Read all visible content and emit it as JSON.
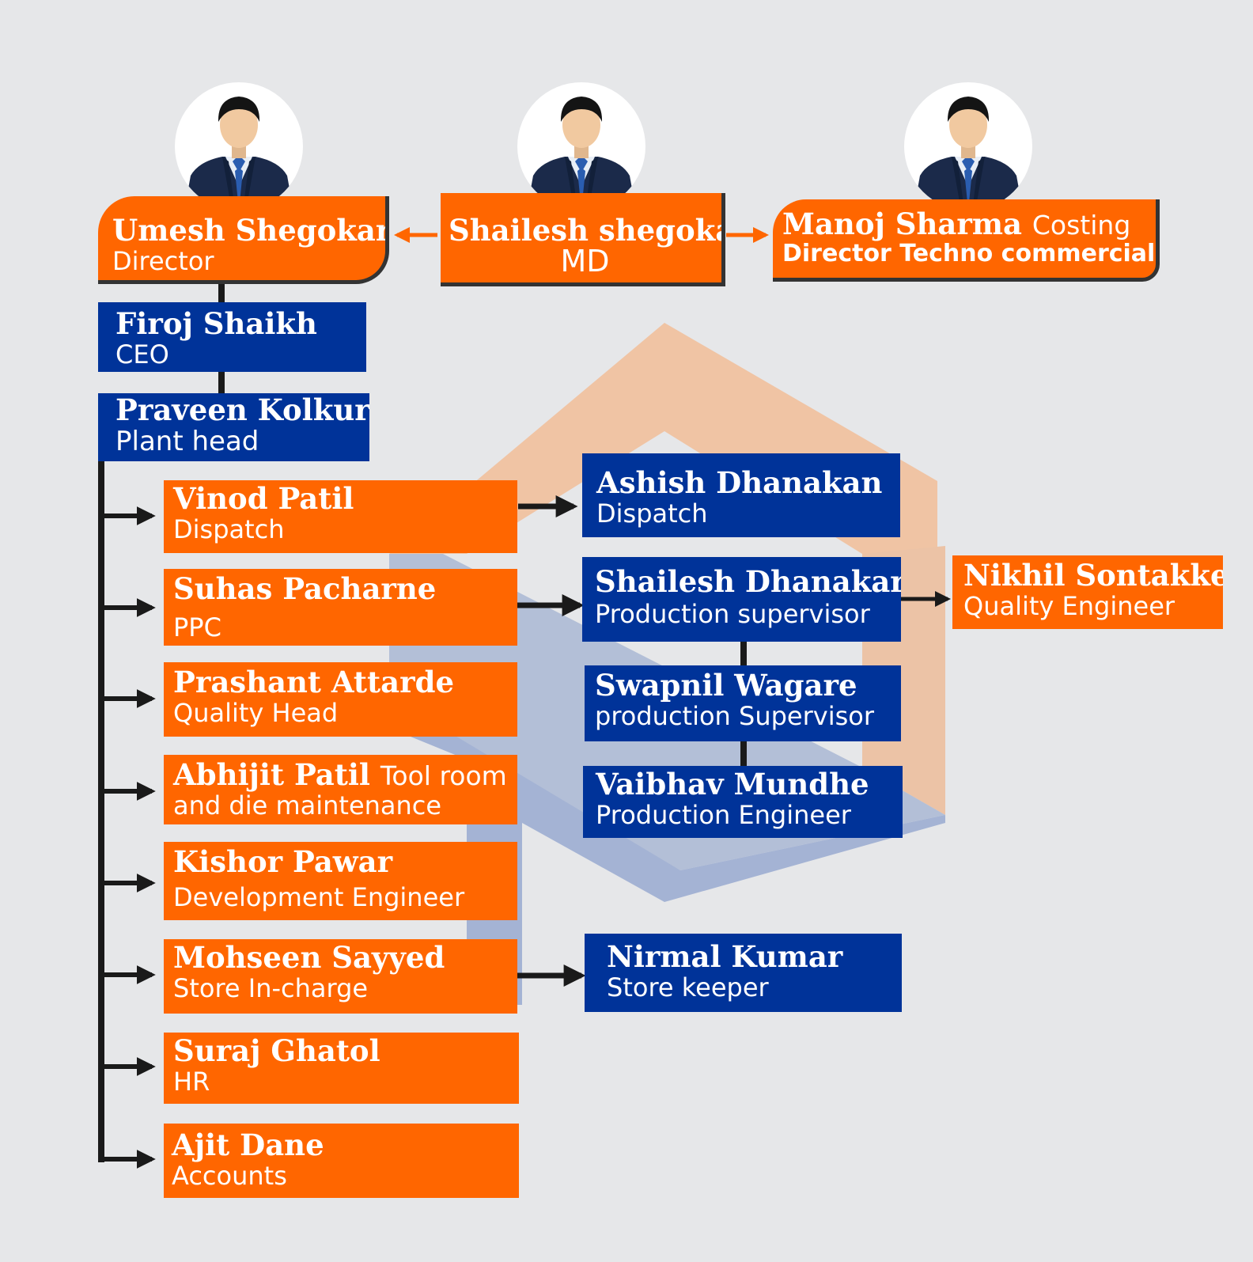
{
  "colors": {
    "orange": "#ff6600",
    "blue": "#003399",
    "background": "#e6e7e9",
    "connector": "#1a1a1a"
  },
  "top": {
    "left": {
      "name": "Umesh Shegokar",
      "role": "Director"
    },
    "center": {
      "name": "Shailesh shegokar",
      "role": "MD"
    },
    "right": {
      "name": "Manoj Sharma",
      "role_inline": "Costing",
      "role": "Director Techno commercial"
    }
  },
  "chain": [
    {
      "name": "Firoj Shaikh",
      "role": "CEO"
    },
    {
      "name": "Praveen Kolkur",
      "role": "Plant head"
    }
  ],
  "departments": [
    {
      "name": "Vinod Patil",
      "role": "Dispatch"
    },
    {
      "name": "Suhas Pacharne",
      "role": "PPC"
    },
    {
      "name": "Prashant Attarde",
      "role": "Quality Head"
    },
    {
      "name": "Abhijit Patil",
      "role_inline": "Tool room",
      "role": "and die maintenance"
    },
    {
      "name": "Kishor Pawar",
      "role": "Development Engineer"
    },
    {
      "name": "Mohseen Sayyed",
      "role": "Store In-charge"
    },
    {
      "name": "Suraj Ghatol",
      "role": "HR"
    },
    {
      "name": "Ajit Dane",
      "role": "Accounts"
    }
  ],
  "reports": [
    {
      "name": "Ashish Dhanakan",
      "role": "Dispatch"
    },
    {
      "name": "Shailesh Dhanakar",
      "role": "Production supervisor"
    },
    {
      "name": "Swapnil Wagare",
      "role": "production Supervisor"
    },
    {
      "name": "Vaibhav Mundhe",
      "role": "Production Engineer"
    },
    {
      "name": "Nirmal Kumar",
      "role": "Store keeper"
    },
    {
      "name": "Nikhil Sontakke",
      "role": "Quality Engineer"
    }
  ],
  "avatar_icon": "person-avatar-icon"
}
